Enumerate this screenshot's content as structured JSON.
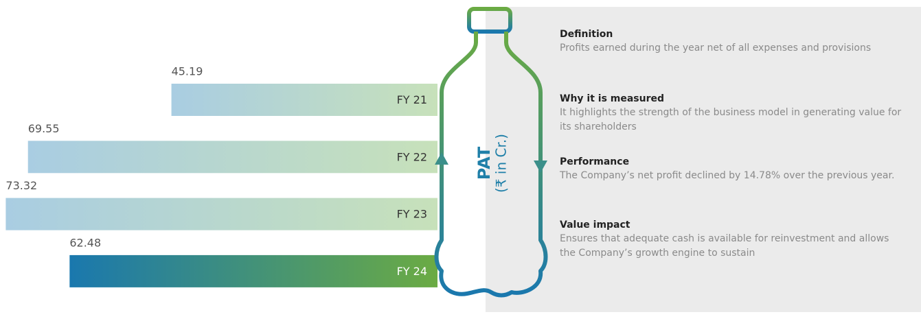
{
  "chart_data": {
    "type": "bar",
    "orientation": "horizontal",
    "title": "PAT",
    "subtitle": "(₹ in Cr.)",
    "categories": [
      "FY 21",
      "FY 22",
      "FY 23",
      "FY 24"
    ],
    "values": [
      45.19,
      69.55,
      73.32,
      62.48
    ],
    "colors": [
      [
        "#a9cde2",
        "#c7e1ba"
      ],
      [
        "#a9cde2",
        "#c7e1ba"
      ],
      [
        "#a9cde2",
        "#c7e1ba"
      ],
      [
        "#1a78ae",
        "#6bab43"
      ]
    ],
    "label_colors": [
      "#333333",
      "#333333",
      "#333333",
      "#ffffff"
    ],
    "xlim": [
      0,
      74.3
    ]
  },
  "panel": {
    "sections": [
      {
        "heading": "Definition",
        "text": "Profits earned during the year net of all expenses and provisions"
      },
      {
        "heading": "Why it is measured",
        "text": "It highlights the strength of the business model in generating value for its shareholders"
      },
      {
        "heading": "Performance",
        "text": "The Company’s net profit declined by 14.78% over the previous year."
      },
      {
        "heading": "Value impact",
        "text": "Ensures that adequate cash is available for reinvestment and allows the Company’s growth engine to sustain"
      }
    ]
  }
}
